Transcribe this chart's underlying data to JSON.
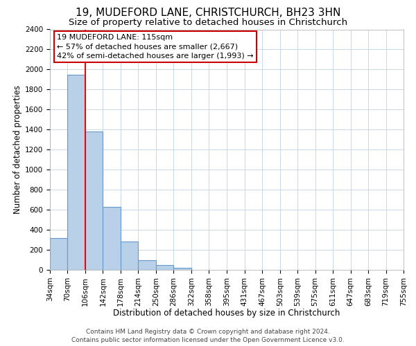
{
  "title": "19, MUDEFORD LANE, CHRISTCHURCH, BH23 3HN",
  "subtitle": "Size of property relative to detached houses in Christchurch",
  "xlabel": "Distribution of detached houses by size in Christchurch",
  "ylabel": "Number of detached properties",
  "bin_edges": [
    34,
    70,
    106,
    142,
    178,
    214,
    250,
    286,
    322,
    358,
    395,
    431,
    467,
    503,
    539,
    575,
    611,
    647,
    683,
    719,
    755
  ],
  "bin_heights": [
    320,
    1950,
    1380,
    630,
    280,
    95,
    45,
    20,
    0,
    0,
    0,
    0,
    0,
    0,
    0,
    0,
    0,
    0,
    0,
    0
  ],
  "bar_color": "#b8d0e8",
  "bar_edge_color": "#6699cc",
  "red_line_x": 106,
  "annotation_line1": "19 MUDEFORD LANE: 115sqm",
  "annotation_line2": "← 57% of detached houses are smaller (2,667)",
  "annotation_line3": "42% of semi-detached houses are larger (1,993) →",
  "ylim": [
    0,
    2400
  ],
  "yticks": [
    0,
    200,
    400,
    600,
    800,
    1000,
    1200,
    1400,
    1600,
    1800,
    2000,
    2200,
    2400
  ],
  "tick_labels": [
    "34sqm",
    "70sqm",
    "106sqm",
    "142sqm",
    "178sqm",
    "214sqm",
    "250sqm",
    "286sqm",
    "322sqm",
    "358sqm",
    "395sqm",
    "431sqm",
    "467sqm",
    "503sqm",
    "539sqm",
    "575sqm",
    "611sqm",
    "647sqm",
    "683sqm",
    "719sqm",
    "755sqm"
  ],
  "footer_line1": "Contains HM Land Registry data © Crown copyright and database right 2024.",
  "footer_line2": "Contains public sector information licensed under the Open Government Licence v3.0.",
  "background_color": "#ffffff",
  "grid_color": "#c8d8e8",
  "title_fontsize": 11,
  "subtitle_fontsize": 9.5,
  "axis_label_fontsize": 8.5,
  "tick_fontsize": 7.5,
  "annotation_fontsize": 8,
  "footer_fontsize": 6.5
}
